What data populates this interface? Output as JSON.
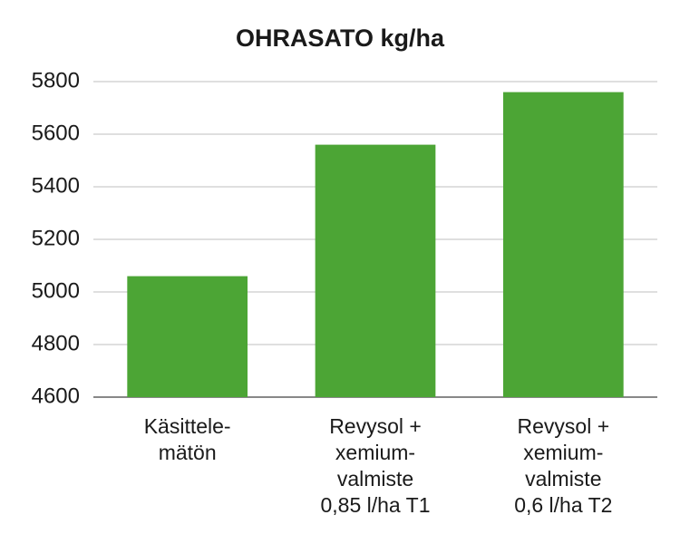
{
  "chart_data": {
    "type": "bar",
    "title": "OHRASATO kg/ha",
    "categories": [
      "Käsittele-\nmätön",
      "Revysol +\nxemium-\nvalmiste\n0,85 l/ha T1",
      "Revysol +\nxemium-\nvalmiste\n0,6 l/ha T2"
    ],
    "values": [
      5060,
      5560,
      5760
    ],
    "color": "#4ca535",
    "ylim": [
      4600,
      5800
    ],
    "yticks": [
      4600,
      4800,
      5000,
      5200,
      5400,
      5600,
      5800
    ],
    "grid": true
  }
}
